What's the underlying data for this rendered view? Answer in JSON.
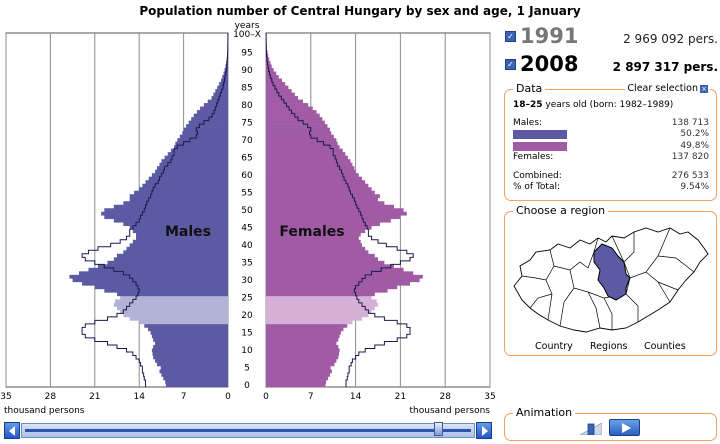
{
  "title": "Population number of Central Hungary by sex and age, 1 January",
  "years_total": [
    {
      "year": "1991",
      "total": "2 969 092 pers."
    },
    {
      "year": "2008",
      "total": "2 897 317 pers."
    }
  ],
  "data_panel": {
    "title": "Data",
    "clear_label": "Clear selection",
    "age_range": "18–25",
    "age_suffix": " years old (born: 1982–1989)",
    "males_label": "Males:",
    "males_value": "138 713",
    "male_share": "50.2%",
    "female_share": "49.8%",
    "females_label": "Females:",
    "females_value": "137 820",
    "combined_label": "Combined:",
    "combined_value": "276 533",
    "pct_label": "% of Total:",
    "pct_value": "9.54%"
  },
  "region_panel": {
    "title": "Choose a region",
    "options": [
      "Country",
      "Regions",
      "Counties"
    ]
  },
  "animation": {
    "title": "Animation"
  },
  "colors": {
    "male": "#5b5aa3",
    "female": "#a15ba4",
    "male_selected": "#b3b3d7",
    "female_selected": "#d6b1d7",
    "outline": "#1a1a50",
    "accent_border": "#f0a060"
  },
  "chart_data": {
    "type": "bar",
    "orientation": "horizontal-pyramid",
    "title": "Population number of Central Hungary by sex and age, 1 January",
    "y_axis_label": "years",
    "x_axis_label": "thousand persons",
    "age_tick_labels": [
      "0",
      "5",
      "10",
      "15",
      "20",
      "25",
      "30",
      "35",
      "40",
      "45",
      "50",
      "55",
      "60",
      "65",
      "70",
      "75",
      "80",
      "85",
      "90",
      "95",
      "100–X"
    ],
    "x_ticks_left": [
      "35",
      "28",
      "21",
      "14",
      "7",
      "0"
    ],
    "x_ticks_right": [
      "0",
      "7",
      "14",
      "21",
      "28",
      "35"
    ],
    "x_range": [
      0,
      35
    ],
    "age_range": [
      0,
      100
    ],
    "series_labels": {
      "male": "Males",
      "female": "Females"
    },
    "grid": true,
    "selected_age_range": [
      18,
      25
    ],
    "age_group_step": 1,
    "series": [
      {
        "name": "Males",
        "year": "2008",
        "values_by_age": [
          9.8,
          9.9,
          10.2,
          10.5,
          10.8,
          10.6,
          11.2,
          11.5,
          11.8,
          11.9,
          12.0,
          11.8,
          11.5,
          11.8,
          12.0,
          12.2,
          12.6,
          13.2,
          14.0,
          15.5,
          16.5,
          17.0,
          17.5,
          18.0,
          17.8,
          17.0,
          17.5,
          19.5,
          21.0,
          23.0,
          24.5,
          25.0,
          23.5,
          22.0,
          20.5,
          19.0,
          18.0,
          17.5,
          16.5,
          16.0,
          15.5,
          15.0,
          14.5,
          14.5,
          15.0,
          15.5,
          16.5,
          18.0,
          19.5,
          20.0,
          19.5,
          18.0,
          16.5,
          15.5,
          15.5,
          14.8,
          14.0,
          13.5,
          13.0,
          12.5,
          12.0,
          11.5,
          11.2,
          10.8,
          10.5,
          10.0,
          9.5,
          9.0,
          8.5,
          8.3,
          8.0,
          7.6,
          7.2,
          7.0,
          6.6,
          6.2,
          5.8,
          5.4,
          4.9,
          4.4,
          3.8,
          3.2,
          2.6,
          2.3,
          2.0,
          1.7,
          1.4,
          1.1,
          0.9,
          0.7,
          0.55,
          0.4,
          0.3,
          0.22,
          0.15,
          0.1,
          0.07,
          0.05,
          0.03,
          0.02,
          0.02
        ]
      },
      {
        "name": "Females",
        "year": "2008",
        "values_by_age": [
          9.3,
          9.4,
          9.7,
          10.0,
          10.3,
          10.1,
          10.7,
          11.0,
          11.3,
          11.4,
          11.5,
          11.3,
          11.0,
          11.3,
          11.5,
          11.7,
          12.1,
          12.7,
          13.5,
          15.0,
          16.0,
          16.5,
          17.0,
          17.5,
          17.3,
          16.5,
          17.0,
          19.0,
          20.5,
          22.5,
          24.0,
          24.5,
          23.0,
          21.5,
          20.0,
          18.5,
          17.5,
          17.0,
          16.0,
          15.5,
          15.0,
          14.8,
          14.5,
          14.8,
          15.5,
          16.5,
          17.8,
          19.5,
          21.0,
          22.0,
          21.5,
          20.0,
          18.5,
          17.5,
          17.8,
          17.0,
          16.5,
          16.0,
          15.5,
          15.0,
          14.5,
          14.0,
          13.8,
          13.5,
          13.2,
          12.8,
          12.4,
          12.0,
          11.5,
          11.2,
          11.0,
          10.6,
          10.2,
          10.0,
          9.6,
          9.2,
          8.8,
          8.4,
          7.9,
          7.3,
          6.6,
          5.8,
          5.0,
          4.5,
          4.0,
          3.5,
          3.0,
          2.5,
          2.0,
          1.6,
          1.2,
          0.9,
          0.7,
          0.5,
          0.35,
          0.25,
          0.15,
          0.1,
          0.07,
          0.05,
          0.05
        ]
      },
      {
        "name": "Males",
        "year": "1991",
        "values_by_age": [
          13.0,
          13.0,
          13.2,
          13.3,
          13.5,
          13.5,
          13.8,
          14.0,
          14.5,
          15.0,
          16.0,
          17.5,
          19.0,
          21.0,
          22.5,
          23.0,
          23.0,
          22.5,
          21.0,
          19.0,
          17.5,
          16.5,
          16.0,
          15.5,
          15.0,
          14.5,
          14.2,
          14.0,
          14.2,
          14.5,
          15.0,
          15.5,
          16.5,
          18.0,
          19.5,
          21.0,
          22.5,
          23.0,
          22.0,
          20.5,
          18.5,
          17.0,
          16.0,
          15.5,
          15.5,
          15.0,
          14.5,
          14.0,
          13.8,
          13.5,
          13.2,
          13.0,
          12.8,
          12.5,
          12.2,
          12.0,
          11.8,
          11.5,
          11.0,
          10.8,
          10.5,
          10.2,
          10.0,
          9.5,
          9.0,
          8.8,
          8.5,
          8.5,
          8.0,
          7.0,
          6.0,
          5.0,
          4.8,
          5.0,
          4.5,
          3.8,
          3.0,
          2.5,
          2.2,
          2.0,
          1.8,
          1.6,
          1.4,
          1.2,
          1.0,
          0.8,
          0.7,
          0.55,
          0.45,
          0.35,
          0.25,
          0.2,
          0.15,
          0.1,
          0.07,
          0.05,
          0.04,
          0.03,
          0.02,
          0.02,
          0.02
        ]
      },
      {
        "name": "Females",
        "year": "1991",
        "values_by_age": [
          12.5,
          12.5,
          12.7,
          12.8,
          13.0,
          13.0,
          13.3,
          13.5,
          14.0,
          14.5,
          15.5,
          17.0,
          18.5,
          20.5,
          22.0,
          22.5,
          22.5,
          22.0,
          20.5,
          18.5,
          17.0,
          16.0,
          15.5,
          15.0,
          14.5,
          14.2,
          14.0,
          13.8,
          14.0,
          14.5,
          15.0,
          15.5,
          16.5,
          18.0,
          19.5,
          21.0,
          22.5,
          23.0,
          22.0,
          20.5,
          18.8,
          17.5,
          16.5,
          16.0,
          16.0,
          15.8,
          15.5,
          15.2,
          15.0,
          14.8,
          14.5,
          14.2,
          14.0,
          13.8,
          13.5,
          13.2,
          13.0,
          12.8,
          12.5,
          12.2,
          12.0,
          11.8,
          11.5,
          11.2,
          11.0,
          10.8,
          10.5,
          10.5,
          10.0,
          9.0,
          8.0,
          7.0,
          6.8,
          7.0,
          6.5,
          5.8,
          5.0,
          4.5,
          4.0,
          3.6,
          3.2,
          2.8,
          2.4,
          2.0,
          1.7,
          1.4,
          1.1,
          0.9,
          0.7,
          0.55,
          0.4,
          0.3,
          0.22,
          0.15,
          0.1,
          0.07,
          0.05,
          0.04,
          0.03,
          0.02,
          0.02
        ]
      }
    ]
  }
}
